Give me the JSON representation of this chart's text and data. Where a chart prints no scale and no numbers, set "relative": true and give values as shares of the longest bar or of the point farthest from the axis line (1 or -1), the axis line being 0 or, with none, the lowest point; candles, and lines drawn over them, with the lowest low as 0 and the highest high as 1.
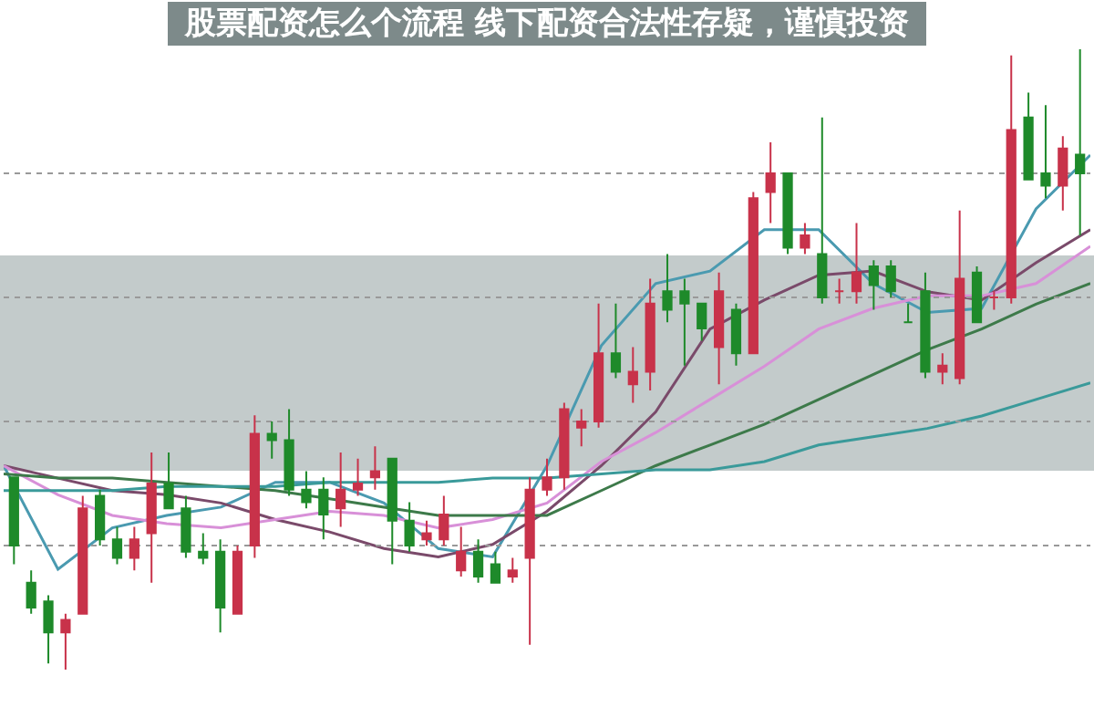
{
  "chart_data": [
    {
      "type": "candlestick",
      "title": "股票配资怎么个流程 线下配资合法性存疑，谨慎投资",
      "relative": true,
      "grid": "y",
      "categories": [
        null,
        null,
        null,
        null,
        null,
        null,
        null,
        null,
        null,
        null,
        null,
        null,
        null,
        null,
        null,
        null,
        null,
        null,
        null,
        null,
        null,
        null,
        null,
        null,
        null,
        null,
        null,
        null,
        null,
        null,
        null,
        null,
        null,
        null,
        null,
        null,
        null,
        null,
        null,
        null,
        null,
        null,
        null,
        null,
        null,
        null,
        null,
        null,
        null,
        null,
        null,
        null,
        null,
        null,
        null,
        null,
        null,
        null,
        null,
        null,
        null,
        null,
        null
      ],
      "ohlc": [
        [
          0.31,
          0.31,
          0.17,
          0.2
        ],
        [
          0.14,
          0.16,
          0.09,
          0.1
        ],
        [
          0.11,
          0.12,
          0.01,
          0.06
        ],
        [
          0.06,
          0.09,
          0,
          0.08
        ],
        [
          0.09,
          0.28,
          0.09,
          0.26
        ],
        [
          0.28,
          0.29,
          0.2,
          0.21
        ],
        [
          0.21,
          0.23,
          0.17,
          0.18
        ],
        [
          0.18,
          0.23,
          0.16,
          0.21
        ],
        [
          0.22,
          0.35,
          0.14,
          0.3
        ],
        [
          0.3,
          0.35,
          0.26,
          0.26
        ],
        [
          0.26,
          0.28,
          0.18,
          0.19
        ],
        [
          0.19,
          0.22,
          0.17,
          0.18
        ],
        [
          0.19,
          0.21,
          0.06,
          0.1
        ],
        [
          0.09,
          0.2,
          0.09,
          0.19
        ],
        [
          0.2,
          0.41,
          0.18,
          0.38
        ],
        [
          0.38,
          0.4,
          0.34,
          0.37
        ],
        [
          0.37,
          0.42,
          0.28,
          0.29
        ],
        [
          0.29,
          0.32,
          0.26,
          0.27
        ],
        [
          0.29,
          0.31,
          0.21,
          0.25
        ],
        [
          0.26,
          0.35,
          0.23,
          0.29
        ],
        [
          0.29,
          0.34,
          0.28,
          0.3
        ],
        [
          0.31,
          0.36,
          0.29,
          0.32
        ],
        [
          0.34,
          0.34,
          0.17,
          0.24
        ],
        [
          0.24,
          0.27,
          0.19,
          0.2
        ],
        [
          0.21,
          0.24,
          0.2,
          0.22
        ],
        [
          0.21,
          0.28,
          0.2,
          0.25
        ],
        [
          0.16,
          0.23,
          0.15,
          0.19
        ],
        [
          0.19,
          0.21,
          0.14,
          0.15
        ],
        [
          0.17,
          0.19,
          0.14,
          0.14
        ],
        [
          0.15,
          0.18,
          0.14,
          0.16
        ],
        [
          0.18,
          0.31,
          0.04,
          0.29
        ],
        [
          0.29,
          0.34,
          0.28,
          0.31
        ],
        [
          0.31,
          0.43,
          0.29,
          0.42
        ],
        [
          0.39,
          0.42,
          0.36,
          0.4
        ],
        [
          0.4,
          0.59,
          0.39,
          0.51
        ],
        [
          0.51,
          0.59,
          0.47,
          0.48
        ],
        [
          0.46,
          0.52,
          0.43,
          0.48
        ],
        [
          0.48,
          0.63,
          0.45,
          0.59
        ],
        [
          0.61,
          0.67,
          0.56,
          0.58
        ],
        [
          0.61,
          0.63,
          0.49,
          0.59
        ],
        [
          0.59,
          0.59,
          0.53,
          0.55
        ],
        [
          0.52,
          0.64,
          0.46,
          0.61
        ],
        [
          0.58,
          0.59,
          0.49,
          0.51
        ],
        [
          0.51,
          0.77,
          0.51,
          0.76
        ],
        [
          0.77,
          0.85,
          0.72,
          0.8
        ],
        [
          0.8,
          0.8,
          0.67,
          0.68
        ],
        [
          0.68,
          0.72,
          0.67,
          0.7
        ],
        [
          0.67,
          0.89,
          0.59,
          0.6
        ],
        [
          0.61,
          0.63,
          0.59,
          0.61
        ],
        [
          0.61,
          0.72,
          0.59,
          0.64
        ],
        [
          0.65,
          0.66,
          0.58,
          0.62
        ],
        [
          0.65,
          0.66,
          0.6,
          0.61
        ],
        [
          0.56,
          0.59,
          0.56,
          0.56
        ],
        [
          0.61,
          0.64,
          0.47,
          0.48
        ],
        [
          0.48,
          0.51,
          0.46,
          0.49
        ],
        [
          0.47,
          0.74,
          0.46,
          0.63
        ],
        [
          0.64,
          0.65,
          0.56,
          0.56
        ],
        [
          0.6,
          0.61,
          0.58,
          0.6
        ],
        [
          0.6,
          0.99,
          0.59,
          0.87
        ],
        [
          0.89,
          0.93,
          0.79,
          0.79
        ],
        [
          0.8,
          0.91,
          0.76,
          0.78
        ],
        [
          0.78,
          0.86,
          0.74,
          0.84
        ],
        [
          0.83,
          1,
          0.7,
          0.8
        ]
      ]
    },
    {
      "type": "line",
      "relative": true,
      "categories": [
        null,
        null,
        null,
        null,
        null,
        null,
        null,
        null,
        null,
        null,
        null,
        null,
        null,
        null,
        null,
        null,
        null,
        null,
        null,
        null,
        null
      ],
      "series": [
        {
          "color": "#4a9ab0",
          "values": [
            0.25,
            0,
            0.1,
            0.13,
            0.15,
            0.21,
            0.21,
            0.16,
            0.05,
            0.03,
            0.25,
            0.54,
            0.69,
            0.72,
            0.82,
            0.82,
            0.69,
            0.62,
            0.63,
            0.87,
            1
          ]
        },
        {
          "color": "#7a4a6a",
          "values": [
            0.25,
            0.22,
            0.19,
            0.18,
            0.16,
            0.12,
            0.09,
            0.05,
            0.03,
            0.06,
            0.14,
            0.25,
            0.38,
            0.58,
            0.65,
            0.71,
            0.72,
            0.67,
            0.65,
            0.74,
            0.82
          ]
        },
        {
          "color": "#d890d8",
          "values": [
            0.25,
            0.18,
            0.13,
            0.11,
            0.1,
            0.12,
            0.14,
            0.13,
            0.1,
            0.12,
            0.16,
            0.26,
            0.33,
            0.41,
            0.49,
            0.58,
            0.63,
            0.66,
            0.66,
            0.69,
            0.78
          ]
        },
        {
          "color": "#3d7a4a",
          "values": [
            0.23,
            0.22,
            0.22,
            0.21,
            0.2,
            0.19,
            0.17,
            0.15,
            0.13,
            0.13,
            0.13,
            0.19,
            0.25,
            0.3,
            0.35,
            0.41,
            0.47,
            0.53,
            0.58,
            0.64,
            0.69
          ]
        },
        {
          "color": "#3a9a9a",
          "values": [
            0.19,
            0.19,
            0.19,
            0.2,
            0.2,
            0.2,
            0.21,
            0.21,
            0.21,
            0.22,
            0.22,
            0.23,
            0.24,
            0.24,
            0.26,
            0.3,
            0.32,
            0.34,
            0.37,
            0.41,
            0.45
          ]
        }
      ]
    }
  ]
}
